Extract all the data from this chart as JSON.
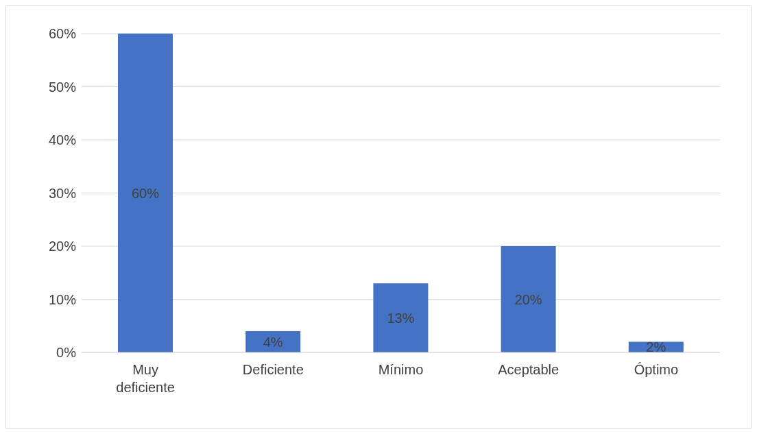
{
  "chart_data": {
    "type": "bar",
    "categories": [
      "Muy deficiente",
      "Deficiente",
      "Mínimo",
      "Aceptable",
      "Óptimo"
    ],
    "values": [
      60,
      4,
      13,
      20,
      2
    ],
    "value_labels": [
      "60%",
      "4%",
      "13%",
      "20%",
      "2%"
    ],
    "color": "#4472c4",
    "ylim": [
      0,
      60
    ],
    "yticks": [
      {
        "value": 0,
        "label": "0%"
      },
      {
        "value": 10,
        "label": "10%"
      },
      {
        "value": 20,
        "label": "20%"
      },
      {
        "value": 30,
        "label": "30%"
      },
      {
        "value": 40,
        "label": "40%"
      },
      {
        "value": 50,
        "label": "50%"
      },
      {
        "value": 60,
        "label": "60%"
      }
    ],
    "grid": "y"
  }
}
